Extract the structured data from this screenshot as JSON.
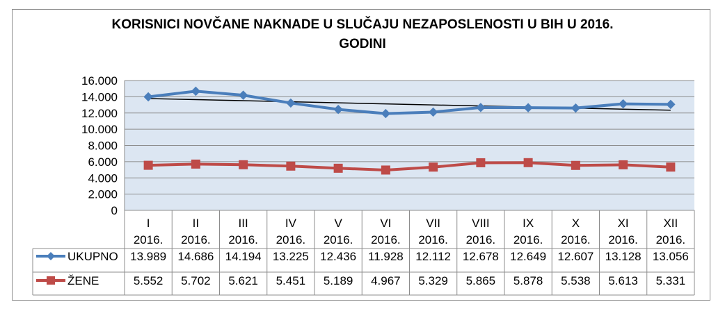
{
  "chart_data": {
    "type": "line",
    "title_line1": "KORISNICI NOVČANE NAKNADE U SLUČAJU NEZAPOSLENOSTI U BIH U 2016.",
    "title_line2": "GODINI",
    "categories": [
      {
        "month": "I",
        "year": "2016."
      },
      {
        "month": "II",
        "year": "2016."
      },
      {
        "month": "III",
        "year": "2016."
      },
      {
        "month": "IV",
        "year": "2016."
      },
      {
        "month": "V",
        "year": "2016."
      },
      {
        "month": "VI",
        "year": "2016."
      },
      {
        "month": "VII",
        "year": "2016."
      },
      {
        "month": "VIII",
        "year": "2016."
      },
      {
        "month": "IX",
        "year": "2016."
      },
      {
        "month": "X",
        "year": "2016."
      },
      {
        "month": "XI",
        "year": "2016."
      },
      {
        "month": "XII",
        "year": "2016."
      }
    ],
    "y_ticks": [
      "16.000",
      "14.000",
      "12.000",
      "10.000",
      "8.000",
      "6.000",
      "4.000",
      "2.000",
      "0"
    ],
    "ylim": [
      0,
      16000
    ],
    "grid": true,
    "trendline": {
      "series": "UKUPNO",
      "type": "linear"
    },
    "series": [
      {
        "name": "UKUPNO",
        "color": "#4a7ebb",
        "marker": "diamond",
        "values": [
          13989,
          14686,
          14194,
          13225,
          12436,
          11928,
          12112,
          12678,
          12649,
          12607,
          13128,
          13056
        ],
        "labels": [
          "13.989",
          "14.686",
          "14.194",
          "13.225",
          "12.436",
          "11.928",
          "12.112",
          "12.678",
          "12.649",
          "12.607",
          "13.128",
          "13.056"
        ]
      },
      {
        "name": "ŽENE",
        "color": "#be4b48",
        "marker": "square",
        "values": [
          5552,
          5702,
          5621,
          5451,
          5189,
          4967,
          5329,
          5865,
          5878,
          5538,
          5613,
          5331
        ],
        "labels": [
          "5.552",
          "5.702",
          "5.621",
          "5.451",
          "5.189",
          "4.967",
          "5.329",
          "5.865",
          "5.878",
          "5.538",
          "5.613",
          "5.331"
        ]
      }
    ],
    "colors": {
      "plot_bg": "#dce6f2",
      "grid": "#8c8c8c",
      "trend": "#000000"
    }
  }
}
